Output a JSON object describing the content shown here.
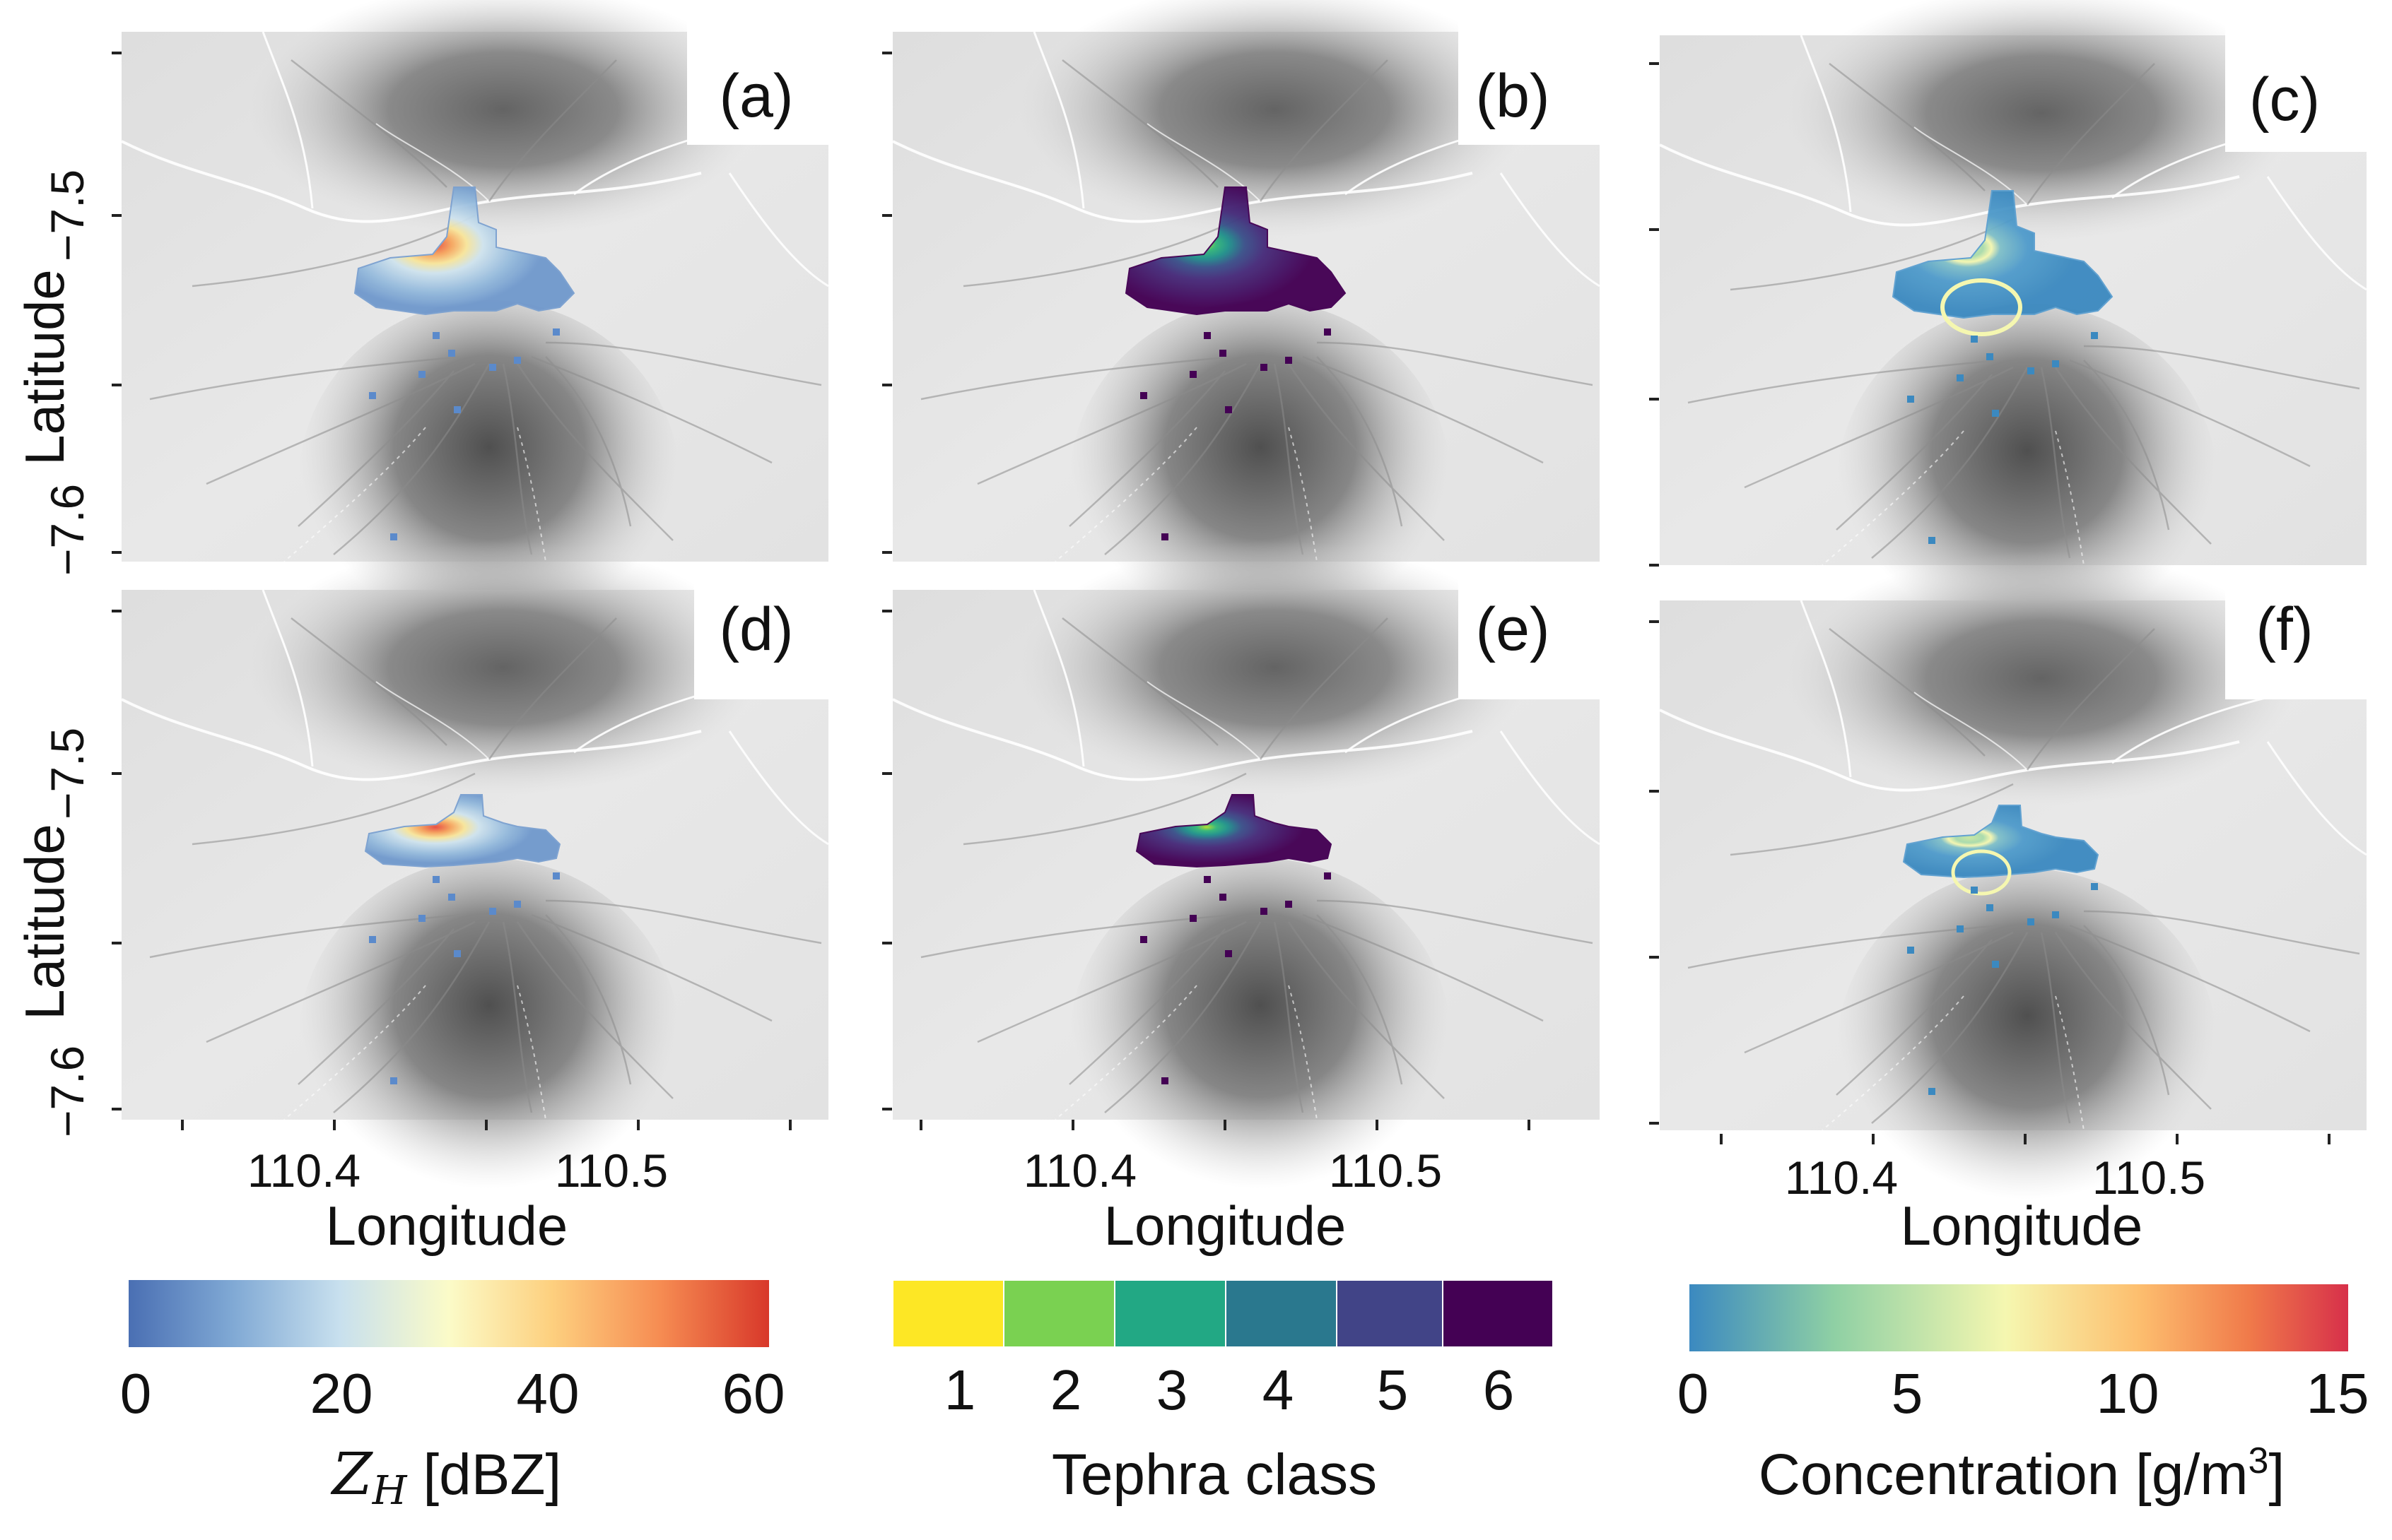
{
  "figure": {
    "panel_labels": [
      "(a)",
      "(b)",
      "(c)",
      "(d)",
      "(e)",
      "(f)"
    ],
    "y_axis": {
      "label": "Latitude",
      "ticks": [
        "−7.5",
        "−7.6"
      ],
      "tick_values": [
        -7.5,
        -7.6
      ]
    },
    "x_axis": {
      "label": "Longitude",
      "ticks": [
        "110.4",
        "110.5"
      ],
      "tick_values": [
        110.4,
        110.5
      ]
    },
    "colorbars": {
      "reflectivity": {
        "label_symbol": "Z",
        "label_subscript": "H",
        "label_units": "[dBZ]",
        "ticks": [
          "0",
          "20",
          "40",
          "60"
        ],
        "range": [
          0,
          62
        ],
        "colors": [
          "#4a6fb3",
          "#7fa8d4",
          "#c8e0ee",
          "#fbfbc8",
          "#fdd07f",
          "#f68c52",
          "#d8382a"
        ]
      },
      "tephra": {
        "label": "Tephra class",
        "ticks": [
          "1",
          "2",
          "3",
          "4",
          "5",
          "6"
        ],
        "colors": [
          "#fde725",
          "#7ad151",
          "#22a884",
          "#2a788e",
          "#414487",
          "#440154"
        ]
      },
      "concentration": {
        "label": "Concentration [g/m",
        "label_superscript": "3",
        "label_end": "]",
        "ticks": [
          "0",
          "5",
          "10",
          "15"
        ],
        "range": [
          0,
          15
        ],
        "colors": [
          "#3b89c0",
          "#8fd0a4",
          "#f5f7b0",
          "#fdbf6f",
          "#f07a4a",
          "#d7304a"
        ]
      }
    }
  }
}
